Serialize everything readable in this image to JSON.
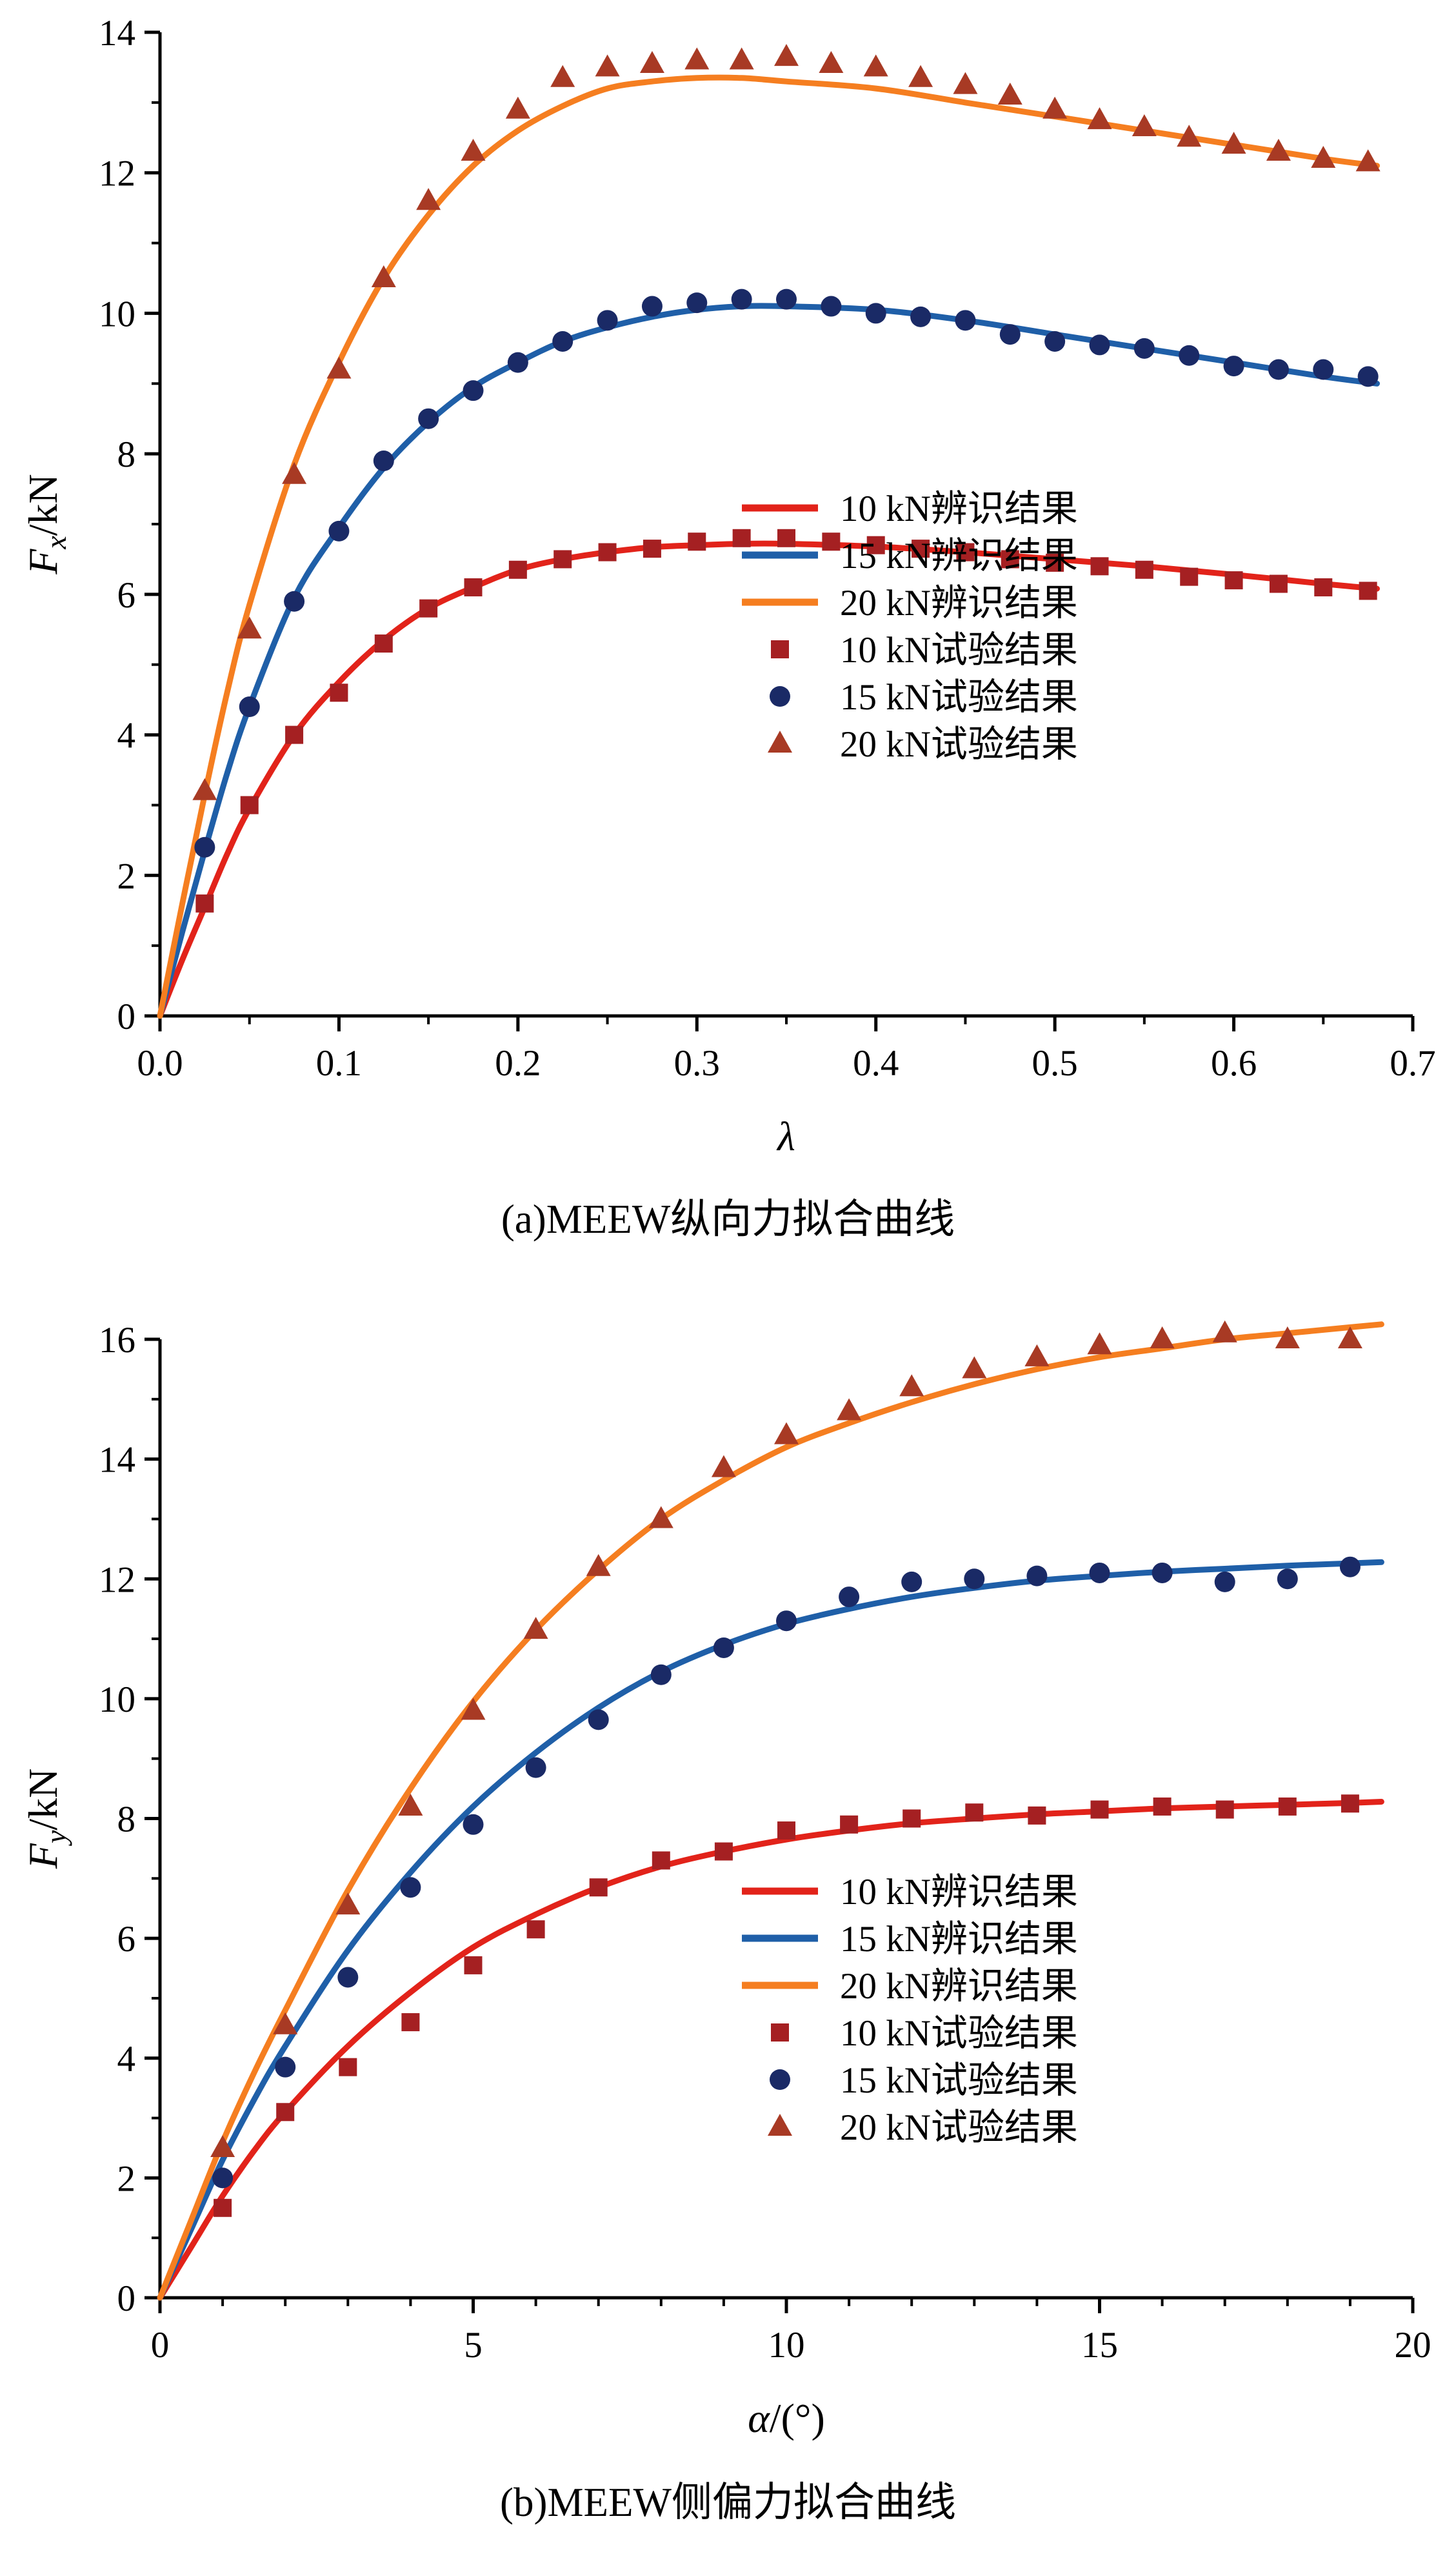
{
  "chart_data": [
    {
      "id": "a",
      "type": "line",
      "caption": "(a)MEEW纵向力拟合曲线",
      "xlabel": {
        "italic": "λ",
        "rest": ""
      },
      "ylabel": {
        "italic": "F",
        "sub": "x",
        "rest": "/kN"
      },
      "xlim": [
        0,
        0.7
      ],
      "ylim": [
        0,
        14
      ],
      "xticks": {
        "values": [
          0,
          0.1,
          0.2,
          0.3,
          0.4,
          0.5,
          0.6,
          0.7
        ],
        "labels": [
          "0.0",
          "0.1",
          "0.2",
          "0.3",
          "0.4",
          "0.5",
          "0.6",
          "0.7"
        ],
        "minor_step": 0.05
      },
      "yticks": {
        "values": [
          0,
          2,
          4,
          6,
          8,
          10,
          12,
          14
        ],
        "labels": [
          "0",
          "2",
          "4",
          "6",
          "8",
          "10",
          "12",
          "14"
        ],
        "minor_step": 1
      },
      "grid": false,
      "legend_pos": {
        "x": 1150,
        "y": 775,
        "row": 73,
        "swatch": 118,
        "gap": 34
      },
      "curves": [
        {
          "name": "10 kN辨识结果",
          "color": "#e2231a",
          "x": [
            0,
            0.0125,
            0.025,
            0.0375,
            0.05,
            0.075,
            0.1,
            0.125,
            0.15,
            0.175,
            0.2,
            0.225,
            0.25,
            0.275,
            0.3,
            0.325,
            0.35,
            0.4,
            0.45,
            0.5,
            0.55,
            0.6,
            0.65,
            0.68
          ],
          "y": [
            0,
            0.8,
            1.55,
            2.3,
            2.95,
            4.0,
            4.75,
            5.35,
            5.8,
            6.1,
            6.35,
            6.5,
            6.6,
            6.67,
            6.7,
            6.72,
            6.72,
            6.68,
            6.6,
            6.5,
            6.4,
            6.28,
            6.15,
            6.08
          ]
        },
        {
          "name": "15 kN辨识结果",
          "color": "#1f5fa8",
          "x": [
            0,
            0.0125,
            0.025,
            0.0375,
            0.05,
            0.075,
            0.1,
            0.125,
            0.15,
            0.175,
            0.2,
            0.225,
            0.25,
            0.275,
            0.3,
            0.325,
            0.35,
            0.4,
            0.45,
            0.5,
            0.55,
            0.6,
            0.65,
            0.68
          ],
          "y": [
            0,
            1.2,
            2.35,
            3.45,
            4.4,
            5.95,
            6.95,
            7.8,
            8.45,
            8.95,
            9.3,
            9.6,
            9.8,
            9.95,
            10.05,
            10.1,
            10.1,
            10.05,
            9.9,
            9.7,
            9.5,
            9.3,
            9.1,
            9.0
          ]
        },
        {
          "name": "20 kN辨识结果",
          "color": "#f57e20",
          "x": [
            0,
            0.0125,
            0.025,
            0.0375,
            0.05,
            0.075,
            0.1,
            0.125,
            0.15,
            0.175,
            0.2,
            0.225,
            0.25,
            0.275,
            0.3,
            0.325,
            0.35,
            0.4,
            0.45,
            0.5,
            0.55,
            0.6,
            0.65,
            0.68
          ],
          "y": [
            0,
            1.6,
            3.15,
            4.6,
            5.85,
            7.85,
            9.3,
            10.5,
            11.4,
            12.1,
            12.6,
            12.95,
            13.2,
            13.3,
            13.35,
            13.35,
            13.3,
            13.2,
            13.0,
            12.8,
            12.6,
            12.4,
            12.2,
            12.1
          ]
        }
      ],
      "points": [
        {
          "name": "10 kN试验结果",
          "marker": "square",
          "color": "#a52022",
          "x": [
            0.025,
            0.05,
            0.075,
            0.1,
            0.125,
            0.15,
            0.175,
            0.2,
            0.225,
            0.25,
            0.275,
            0.3,
            0.325,
            0.35,
            0.375,
            0.4,
            0.425,
            0.45,
            0.475,
            0.5,
            0.525,
            0.55,
            0.575,
            0.6,
            0.625,
            0.65,
            0.675
          ],
          "y": [
            1.6,
            3.0,
            4.0,
            4.6,
            5.3,
            5.8,
            6.1,
            6.35,
            6.5,
            6.6,
            6.65,
            6.75,
            6.8,
            6.8,
            6.75,
            6.7,
            6.65,
            6.6,
            6.5,
            6.45,
            6.4,
            6.35,
            6.25,
            6.2,
            6.15,
            6.1,
            6.05
          ]
        },
        {
          "name": "15 kN试验结果",
          "marker": "circle",
          "color": "#1a2a66",
          "x": [
            0.025,
            0.05,
            0.075,
            0.1,
            0.125,
            0.15,
            0.175,
            0.2,
            0.225,
            0.25,
            0.275,
            0.3,
            0.325,
            0.35,
            0.375,
            0.4,
            0.425,
            0.45,
            0.475,
            0.5,
            0.525,
            0.55,
            0.575,
            0.6,
            0.625,
            0.65,
            0.675
          ],
          "y": [
            2.4,
            4.4,
            5.9,
            6.9,
            7.9,
            8.5,
            8.9,
            9.3,
            9.6,
            9.9,
            10.1,
            10.15,
            10.2,
            10.2,
            10.1,
            10.0,
            9.95,
            9.9,
            9.7,
            9.6,
            9.55,
            9.5,
            9.4,
            9.25,
            9.2,
            9.2,
            9.1
          ]
        },
        {
          "name": "20 kN试验结果",
          "marker": "triangle",
          "color": "#a83a24",
          "x": [
            0.025,
            0.05,
            0.075,
            0.1,
            0.125,
            0.15,
            0.175,
            0.2,
            0.225,
            0.25,
            0.275,
            0.3,
            0.325,
            0.35,
            0.375,
            0.4,
            0.425,
            0.45,
            0.475,
            0.5,
            0.525,
            0.55,
            0.575,
            0.6,
            0.625,
            0.65,
            0.675
          ],
          "y": [
            3.2,
            5.5,
            7.7,
            9.2,
            10.5,
            11.6,
            12.3,
            12.9,
            13.35,
            13.5,
            13.55,
            13.6,
            13.6,
            13.65,
            13.55,
            13.5,
            13.35,
            13.25,
            13.1,
            12.9,
            12.75,
            12.65,
            12.5,
            12.4,
            12.3,
            12.2,
            12.15
          ]
        }
      ]
    },
    {
      "id": "b",
      "type": "line",
      "caption": "(b)MEEW侧偏力拟合曲线",
      "xlabel": {
        "italic": "α",
        "rest": "/(°)"
      },
      "ylabel": {
        "italic": "F",
        "sub": "y",
        "rest": "/kN"
      },
      "xlim": [
        0,
        20
      ],
      "ylim": [
        0,
        16
      ],
      "xticks": {
        "values": [
          0,
          5,
          10,
          15,
          20
        ],
        "labels": [
          "0",
          "5",
          "10",
          "15",
          "20"
        ],
        "minor_step": 1
      },
      "yticks": {
        "values": [
          0,
          2,
          4,
          6,
          8,
          10,
          12,
          14,
          16
        ],
        "labels": [
          "0",
          "2",
          "4",
          "6",
          "8",
          "10",
          "12",
          "14",
          "16"
        ],
        "minor_step": 1
      },
      "grid": false,
      "legend_pos": {
        "x": 1150,
        "y": 905,
        "row": 73,
        "swatch": 118,
        "gap": 34
      },
      "curves": [
        {
          "name": "10 kN辨识结果",
          "color": "#e2231a",
          "x": [
            0,
            0.5,
            1,
            1.5,
            2,
            3,
            4,
            5,
            6,
            7,
            8,
            9,
            10,
            11,
            12,
            13,
            14,
            15,
            16,
            17,
            18,
            19,
            19.5
          ],
          "y": [
            0,
            0.85,
            1.7,
            2.45,
            3.1,
            4.2,
            5.1,
            5.85,
            6.4,
            6.85,
            7.2,
            7.45,
            7.65,
            7.8,
            7.92,
            8.0,
            8.07,
            8.12,
            8.17,
            8.2,
            8.23,
            8.26,
            8.28
          ]
        },
        {
          "name": "15 kN辨识结果",
          "color": "#1f5fa8",
          "x": [
            0,
            0.5,
            1,
            1.5,
            2,
            3,
            4,
            5,
            6,
            7,
            8,
            9,
            10,
            11,
            12,
            13,
            14,
            15,
            16,
            17,
            18,
            19,
            19.5
          ],
          "y": [
            0,
            1.15,
            2.3,
            3.3,
            4.2,
            5.8,
            7.1,
            8.2,
            9.1,
            9.85,
            10.45,
            10.9,
            11.25,
            11.5,
            11.7,
            11.85,
            11.97,
            12.05,
            12.12,
            12.17,
            12.22,
            12.26,
            12.28
          ]
        },
        {
          "name": "20 kN辨识结果",
          "color": "#f57e20",
          "x": [
            0,
            0.5,
            1,
            1.5,
            2,
            3,
            4,
            5,
            6,
            7,
            8,
            9,
            10,
            11,
            12,
            13,
            14,
            15,
            16,
            17,
            18,
            19,
            19.5
          ],
          "y": [
            0,
            1.3,
            2.6,
            3.75,
            4.8,
            6.8,
            8.5,
            9.95,
            11.15,
            12.15,
            13.0,
            13.65,
            14.2,
            14.6,
            14.95,
            15.25,
            15.5,
            15.7,
            15.85,
            16.0,
            16.1,
            16.2,
            16.25
          ]
        }
      ],
      "points": [
        {
          "name": "10 kN试验结果",
          "marker": "square",
          "color": "#a52022",
          "x": [
            1,
            2,
            3,
            4,
            5,
            6,
            7,
            8,
            9,
            10,
            11,
            12,
            13,
            14,
            15,
            16,
            17,
            18,
            19
          ],
          "y": [
            1.5,
            3.1,
            3.85,
            4.6,
            5.55,
            6.15,
            6.85,
            7.3,
            7.45,
            7.8,
            7.9,
            8.0,
            8.1,
            8.05,
            8.15,
            8.2,
            8.15,
            8.2,
            8.25
          ]
        },
        {
          "name": "15 kN试验结果",
          "marker": "circle",
          "color": "#1a2a66",
          "x": [
            1,
            2,
            3,
            4,
            5,
            6,
            7,
            8,
            9,
            10,
            11,
            12,
            13,
            14,
            15,
            16,
            17,
            18,
            19
          ],
          "y": [
            2.0,
            3.85,
            5.35,
            6.85,
            7.9,
            8.85,
            9.65,
            10.4,
            10.85,
            11.3,
            11.7,
            11.95,
            12.0,
            12.05,
            12.1,
            12.1,
            11.95,
            12.0,
            12.2
          ]
        },
        {
          "name": "20 kN试验结果",
          "marker": "triangle",
          "color": "#a83a24",
          "x": [
            1,
            2,
            3,
            4,
            5,
            6,
            7,
            8,
            9,
            10,
            11,
            12,
            13,
            14,
            15,
            16,
            17,
            18,
            19
          ],
          "y": [
            2.5,
            4.55,
            6.55,
            8.2,
            9.8,
            11.15,
            12.2,
            13.0,
            13.85,
            14.4,
            14.8,
            15.2,
            15.5,
            15.7,
            15.9,
            16.0,
            16.1,
            16.0,
            16.0
          ]
        }
      ]
    }
  ]
}
